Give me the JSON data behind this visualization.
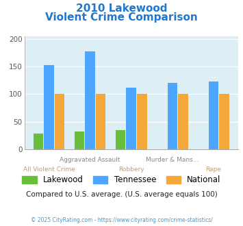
{
  "title_line1": "2010 Lakewood",
  "title_line2": "Violent Crime Comparison",
  "categories_top": [
    "Aggravated Assault",
    "Murder & Mans..."
  ],
  "categories_bottom": [
    "All Violent Crime",
    "Robbery",
    "Rape"
  ],
  "lakewood": [
    28,
    32,
    34,
    0,
    0
  ],
  "tennessee": [
    152,
    177,
    111,
    120,
    123
  ],
  "national": [
    100,
    100,
    100,
    100,
    100
  ],
  "colors": {
    "lakewood": "#6abf3a",
    "tennessee": "#4da6ff",
    "national": "#f5a83a"
  },
  "ylim": [
    0,
    205
  ],
  "yticks": [
    0,
    50,
    100,
    150,
    200
  ],
  "subtitle": "Compared to U.S. average. (U.S. average equals 100)",
  "footer": "© 2025 CityRating.com - https://www.cityrating.com/crime-statistics/",
  "title_color": "#2277cc",
  "subtitle_color": "#222222",
  "footer_color": "#4499cc",
  "plot_bg": "#ddeef5"
}
